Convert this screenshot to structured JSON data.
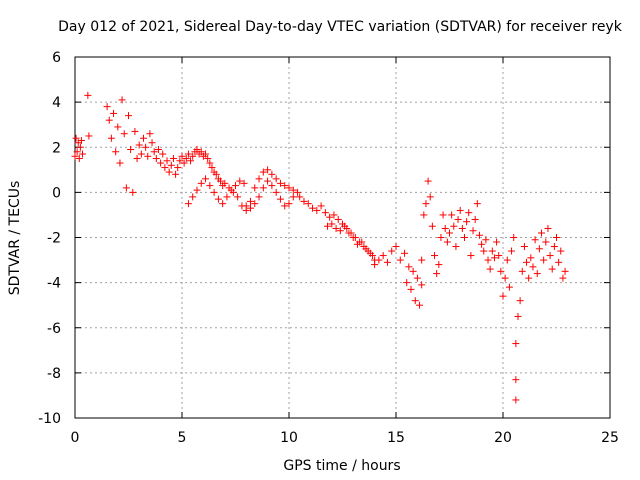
{
  "chart_data": {
    "type": "scatter",
    "title": "Day 012 of 2021, Sidereal Day-to-day VTEC variation (SDTVAR) for receiver reyk",
    "xlabel": "GPS time / hours",
    "ylabel": "SDTVAR / TECUs",
    "xlim": [
      0,
      25
    ],
    "ylim": [
      -10,
      6
    ],
    "xticks": [
      0,
      5,
      10,
      15,
      20,
      25
    ],
    "yticks": [
      6,
      4,
      2,
      0,
      -2,
      -4,
      -6,
      -8,
      -10
    ],
    "grid": true,
    "marker": "+",
    "color": "#ff0000",
    "series": [
      {
        "name": "reyk",
        "x": [
          0.0,
          0.05,
          0.1,
          0.15,
          0.2,
          0.25,
          0.3,
          0.35,
          0.6,
          0.65,
          1.5,
          1.6,
          1.7,
          1.8,
          1.9,
          2.0,
          2.1,
          2.2,
          2.3,
          2.4,
          2.5,
          2.6,
          2.7,
          2.8,
          2.9,
          3.0,
          3.1,
          3.2,
          3.3,
          3.4,
          3.5,
          3.6,
          3.7,
          3.8,
          3.9,
          4.0,
          4.1,
          4.2,
          4.3,
          4.4,
          4.5,
          4.6,
          4.7,
          4.8,
          4.9,
          5.0,
          5.1,
          5.2,
          5.3,
          5.4,
          5.5,
          5.6,
          5.7,
          5.8,
          5.9,
          6.0,
          6.1,
          6.2,
          6.3,
          6.4,
          6.5,
          6.6,
          6.7,
          6.8,
          6.9,
          7.0,
          5.3,
          5.5,
          5.7,
          5.9,
          6.1,
          6.3,
          6.5,
          6.7,
          6.9,
          7.1,
          7.3,
          7.5,
          7.7,
          7.9,
          7.2,
          7.4,
          7.6,
          7.8,
          8.0,
          8.2,
          8.4,
          8.6,
          8.8,
          9.0,
          9.2,
          9.4,
          9.6,
          9.8,
          10.0,
          10.2,
          8.0,
          8.2,
          8.4,
          8.6,
          8.8,
          9.0,
          9.2,
          9.4,
          9.6,
          9.8,
          10.0,
          10.2,
          10.4,
          10.5,
          10.7,
          10.9,
          11.1,
          11.3,
          11.5,
          11.7,
          11.9,
          12.1,
          12.3,
          12.5,
          12.7,
          12.9,
          13.1,
          13.3,
          13.5,
          13.7,
          13.9,
          11.8,
          12.0,
          12.2,
          12.4,
          12.6,
          12.8,
          13.0,
          13.2,
          13.4,
          13.6,
          13.8,
          14.0,
          14.0,
          14.2,
          14.4,
          14.6,
          14.8,
          15.0,
          15.2,
          15.4,
          15.6,
          15.8,
          16.0,
          16.2,
          15.5,
          15.7,
          15.9,
          16.1,
          16.2,
          16.3,
          16.4,
          16.5,
          16.6,
          16.7,
          16.8,
          16.9,
          17.0,
          17.1,
          17.2,
          17.3,
          17.4,
          17.5,
          17.6,
          17.7,
          17.8,
          17.9,
          18.0,
          18.1,
          18.2,
          18.3,
          18.4,
          18.5,
          18.6,
          18.7,
          18.8,
          18.9,
          19.0,
          19.1,
          19.2,
          19.3,
          19.4,
          19.5,
          19.6,
          19.7,
          19.8,
          19.9,
          20.0,
          20.1,
          20.2,
          20.3,
          20.4,
          20.5,
          20.6,
          20.6,
          20.6,
          20.7,
          20.8,
          20.9,
          21.0,
          21.1,
          21.2,
          21.3,
          21.4,
          21.5,
          21.6,
          21.7,
          21.8,
          21.9,
          22.0,
          22.1,
          22.2,
          22.3,
          22.4,
          22.5,
          22.6,
          22.7,
          22.8,
          22.9
        ],
        "y": [
          1.6,
          2.4,
          1.8,
          2.2,
          1.5,
          2.0,
          2.3,
          1.7,
          4.3,
          2.5,
          3.8,
          3.2,
          2.4,
          3.5,
          1.8,
          2.9,
          1.3,
          4.1,
          2.6,
          0.2,
          3.4,
          1.9,
          0.0,
          2.7,
          1.5,
          2.1,
          1.7,
          2.4,
          2.0,
          1.6,
          2.6,
          2.2,
          1.8,
          1.5,
          1.9,
          1.3,
          1.7,
          1.1,
          1.4,
          0.9,
          1.2,
          1.5,
          0.8,
          1.1,
          1.4,
          1.6,
          1.3,
          1.5,
          1.7,
          1.4,
          1.6,
          1.8,
          1.9,
          1.7,
          1.8,
          1.6,
          1.7,
          1.5,
          1.3,
          1.1,
          0.9,
          0.8,
          0.6,
          0.5,
          0.3,
          0.4,
          -0.5,
          -0.2,
          0.1,
          0.4,
          0.6,
          0.3,
          0.0,
          -0.3,
          -0.5,
          -0.2,
          0.1,
          0.3,
          0.5,
          0.4,
          0.2,
          0.0,
          -0.2,
          -0.6,
          -0.8,
          -0.4,
          0.2,
          0.6,
          0.9,
          1.0,
          0.8,
          0.6,
          0.4,
          0.3,
          0.2,
          0.1,
          -0.6,
          -0.7,
          -0.5,
          -0.2,
          0.2,
          0.5,
          0.3,
          0.0,
          -0.3,
          -0.6,
          -0.5,
          -0.2,
          0.0,
          -0.2,
          -0.4,
          -0.5,
          -0.7,
          -0.8,
          -0.6,
          -0.9,
          -1.1,
          -1.0,
          -1.2,
          -1.4,
          -1.6,
          -1.8,
          -2.0,
          -2.2,
          -2.4,
          -2.6,
          -2.8,
          -1.5,
          -1.4,
          -1.6,
          -1.7,
          -1.5,
          -1.8,
          -2.0,
          -2.3,
          -2.2,
          -2.5,
          -2.7,
          -3.0,
          -3.2,
          -3.0,
          -2.8,
          -3.1,
          -2.6,
          -2.4,
          -3.0,
          -2.7,
          -3.3,
          -3.5,
          -3.8,
          -4.1,
          -4.0,
          -4.3,
          -4.8,
          -5.0,
          -3.0,
          -1.0,
          -0.5,
          0.5,
          -0.2,
          -1.5,
          -2.8,
          -3.6,
          -3.2,
          -2.0,
          -1.0,
          -1.6,
          -2.2,
          -1.8,
          -1.0,
          -1.5,
          -2.4,
          -1.2,
          -0.8,
          -1.6,
          -2.0,
          -1.3,
          -0.9,
          -2.8,
          -1.7,
          -1.2,
          -0.5,
          -1.9,
          -2.3,
          -2.6,
          -2.1,
          -3.0,
          -3.4,
          -2.6,
          -2.9,
          -2.2,
          -2.8,
          -3.5,
          -4.6,
          -3.8,
          -3.0,
          -4.2,
          -2.6,
          -2.0,
          -6.7,
          -8.3,
          -9.2,
          -5.5,
          -4.8,
          -3.5,
          -2.4,
          -3.1,
          -3.8,
          -2.9,
          -3.3,
          -2.1,
          -3.6,
          -2.5,
          -1.8,
          -3.0,
          -2.2,
          -1.6,
          -2.8,
          -3.4,
          -2.4,
          -2.0,
          -3.1,
          -2.6,
          -3.8,
          -3.5
        ]
      }
    ]
  }
}
